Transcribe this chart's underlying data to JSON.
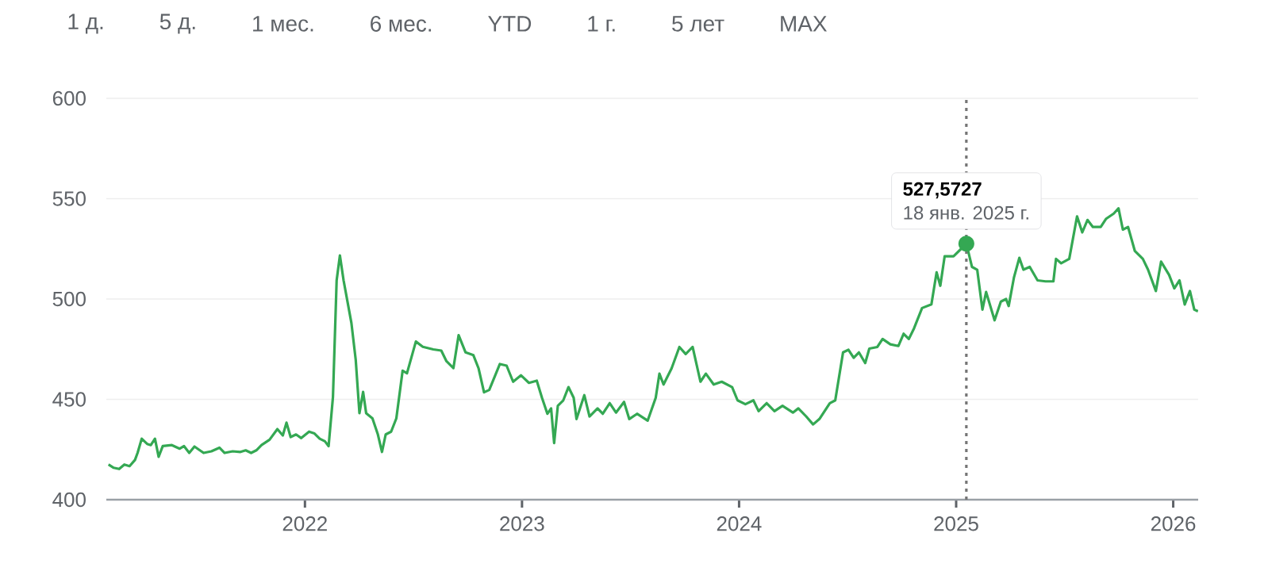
{
  "chart_data": {
    "type": "line",
    "annotations": [
      "1 д.",
      "5 д.",
      "1 мес.",
      "6 мес.",
      "YTD",
      "1 г.",
      "5 лет",
      "MAX"
    ],
    "xlim": [
      2021.085,
      2026.115
    ],
    "xticks": [
      2022,
      2023,
      2024,
      2025,
      2026
    ],
    "ylim": [
      400,
      600
    ],
    "yticks": [
      400,
      450,
      500,
      550,
      600
    ],
    "grid": "y",
    "ref_lines": [
      {
        "axis": "x",
        "value": 2025.047,
        "color": "#757575",
        "line_style": "dotted",
        "label": "18 янв. 2025 г."
      }
    ],
    "series": [
      {
        "color": "#34a853",
        "value_labels": [
          null,
          null,
          null,
          null,
          null,
          null,
          null,
          null,
          null,
          null,
          null,
          null,
          null,
          null,
          null,
          null,
          null,
          null,
          null,
          null,
          null,
          null,
          null,
          null,
          null,
          null,
          null,
          null,
          null,
          null,
          null,
          null,
          null,
          null,
          null,
          null,
          null,
          null,
          null,
          null,
          null,
          null,
          null,
          null,
          null,
          null,
          null,
          null,
          null,
          null,
          null,
          null,
          null,
          null,
          null,
          null,
          null,
          null,
          null,
          null,
          null,
          null,
          null,
          null,
          null,
          null,
          null,
          null,
          null,
          null,
          null,
          null,
          null,
          null,
          null,
          null,
          null,
          null,
          null,
          null,
          null,
          null,
          null,
          null,
          null,
          null,
          null,
          null,
          null,
          null,
          null,
          null,
          null,
          null,
          null,
          null,
          null,
          null,
          null,
          null,
          null,
          null,
          null,
          null,
          null,
          null,
          null,
          null,
          null,
          null,
          null,
          null,
          null,
          null,
          null,
          null,
          null,
          null,
          null,
          null,
          null,
          null,
          null,
          null,
          null,
          null,
          null,
          null,
          null,
          null,
          null,
          null,
          null,
          null,
          null,
          null,
          null,
          null,
          null,
          "527,5727",
          null,
          null,
          null,
          null,
          null,
          null,
          null,
          null,
          null,
          null,
          null,
          null,
          null,
          null,
          null,
          null,
          null,
          null,
          null,
          null,
          null,
          null,
          null,
          null,
          null,
          null,
          null,
          null,
          null,
          null,
          null,
          null,
          null,
          null,
          null,
          null,
          null,
          null,
          null,
          null
        ],
        "x": [
          2021.095,
          2021.119,
          2021.144,
          2021.168,
          2021.192,
          2021.217,
          2021.229,
          2021.248,
          2021.273,
          2021.29,
          2021.309,
          2021.326,
          2021.345,
          2021.387,
          2021.423,
          2021.443,
          2021.467,
          2021.491,
          2021.533,
          2021.569,
          2021.606,
          2021.63,
          2021.667,
          2021.703,
          2021.727,
          2021.752,
          2021.776,
          2021.8,
          2021.837,
          2021.873,
          2021.898,
          2021.915,
          2021.934,
          2021.959,
          2021.983,
          2022.019,
          2022.044,
          2022.068,
          2022.092,
          2022.109,
          2022.129,
          2022.146,
          2022.161,
          2022.178,
          2022.214,
          2022.234,
          2022.251,
          2022.268,
          2022.282,
          2022.311,
          2022.336,
          2022.355,
          2022.372,
          2022.397,
          2022.421,
          2022.45,
          2022.47,
          2022.511,
          2022.543,
          2022.591,
          2022.628,
          2022.652,
          2022.684,
          2022.708,
          2022.74,
          2022.776,
          2022.8,
          2022.825,
          2022.849,
          2022.898,
          2022.929,
          2022.959,
          2022.995,
          2023.032,
          2023.068,
          2023.092,
          2023.117,
          2023.134,
          2023.148,
          2023.165,
          2023.19,
          2023.214,
          2023.238,
          2023.251,
          2023.287,
          2023.311,
          2023.348,
          2023.372,
          2023.404,
          2023.433,
          2023.47,
          2023.494,
          2023.53,
          2023.579,
          2023.616,
          2023.633,
          2023.652,
          2023.689,
          2023.725,
          2023.754,
          2023.786,
          2023.822,
          2023.847,
          2023.883,
          2023.92,
          2023.968,
          2023.993,
          2024.029,
          2024.066,
          2024.09,
          2024.127,
          2024.163,
          2024.2,
          2024.248,
          2024.273,
          2024.309,
          2024.341,
          2024.37,
          2024.418,
          2024.443,
          2024.479,
          2024.504,
          2024.528,
          2024.552,
          2024.581,
          2024.6,
          2024.637,
          2024.661,
          2024.697,
          2024.734,
          2024.758,
          2024.782,
          2024.806,
          2024.843,
          2024.886,
          2024.91,
          2024.927,
          2024.947,
          2024.988,
          2025.047,
          2025.073,
          2025.097,
          2025.121,
          2025.138,
          2025.177,
          2025.206,
          2025.23,
          2025.242,
          2025.266,
          2025.291,
          2025.31,
          2025.339,
          2025.375,
          2025.412,
          2025.448,
          2025.46,
          2025.484,
          2025.521,
          2025.557,
          2025.581,
          2025.605,
          2025.63,
          2025.666,
          2025.69,
          2025.726,
          2025.748,
          2025.768,
          2025.792,
          2025.823,
          2025.86,
          2025.884,
          2025.92,
          2025.944,
          2025.981,
          2026.005,
          2026.029,
          2026.053,
          2026.077,
          2026.097,
          2026.114
        ],
        "values": [
          417.5,
          415.9,
          415.3,
          417.5,
          416.7,
          419.8,
          423.3,
          430.4,
          427.8,
          427.2,
          430.4,
          421.4,
          426.7,
          427.2,
          425.4,
          426.7,
          423.3,
          426.5,
          423.3,
          424.1,
          425.9,
          423.3,
          424.1,
          423.8,
          424.6,
          423.3,
          424.6,
          427.2,
          429.9,
          435.2,
          432,
          438.4,
          431.2,
          432.5,
          430.7,
          433.9,
          433,
          430.4,
          429.1,
          426.7,
          451.1,
          509.3,
          521.7,
          509.3,
          488.1,
          469.6,
          443.1,
          453.7,
          443.1,
          440.5,
          432.5,
          423.8,
          432.5,
          433.9,
          440.5,
          464.3,
          463,
          478.8,
          476.2,
          474.9,
          474.3,
          469,
          465.6,
          482,
          473.4,
          472,
          465.4,
          453.5,
          454.7,
          467.6,
          466.8,
          458.8,
          462,
          458.2,
          459.3,
          450.8,
          442.8,
          445.5,
          428.2,
          446.8,
          449.5,
          456.1,
          450.8,
          440.2,
          452.1,
          441.5,
          445.5,
          442.8,
          448.1,
          443.4,
          448.7,
          440.2,
          442.8,
          439.4,
          450.8,
          462.8,
          457.4,
          465.4,
          476.1,
          472.6,
          476.1,
          458.8,
          462.8,
          457.4,
          458.8,
          456.1,
          449.5,
          447.6,
          449.5,
          444.1,
          448.1,
          444.1,
          446.8,
          443.4,
          445.5,
          441.5,
          437.5,
          440.2,
          448.1,
          449.5,
          473.4,
          474.7,
          470.7,
          473.4,
          468.1,
          475.3,
          476.1,
          480.1,
          477.4,
          476.6,
          482.7,
          480.1,
          485.4,
          495.5,
          497.3,
          513.3,
          506.6,
          521.3,
          521.3,
          527.5727,
          516,
          514.6,
          494.7,
          503.5,
          489.4,
          498.7,
          500,
          496.5,
          510.6,
          520.5,
          514.6,
          516,
          509.3,
          508.8,
          508.8,
          520,
          517.8,
          520,
          541.2,
          533.2,
          539.4,
          535.9,
          535.9,
          539.9,
          542.6,
          545.2,
          534.6,
          535.9,
          524,
          520,
          514.6,
          504,
          518.6,
          512,
          505.3,
          509.3,
          497.3,
          504,
          494.7,
          493.9
        ]
      }
    ]
  }
}
